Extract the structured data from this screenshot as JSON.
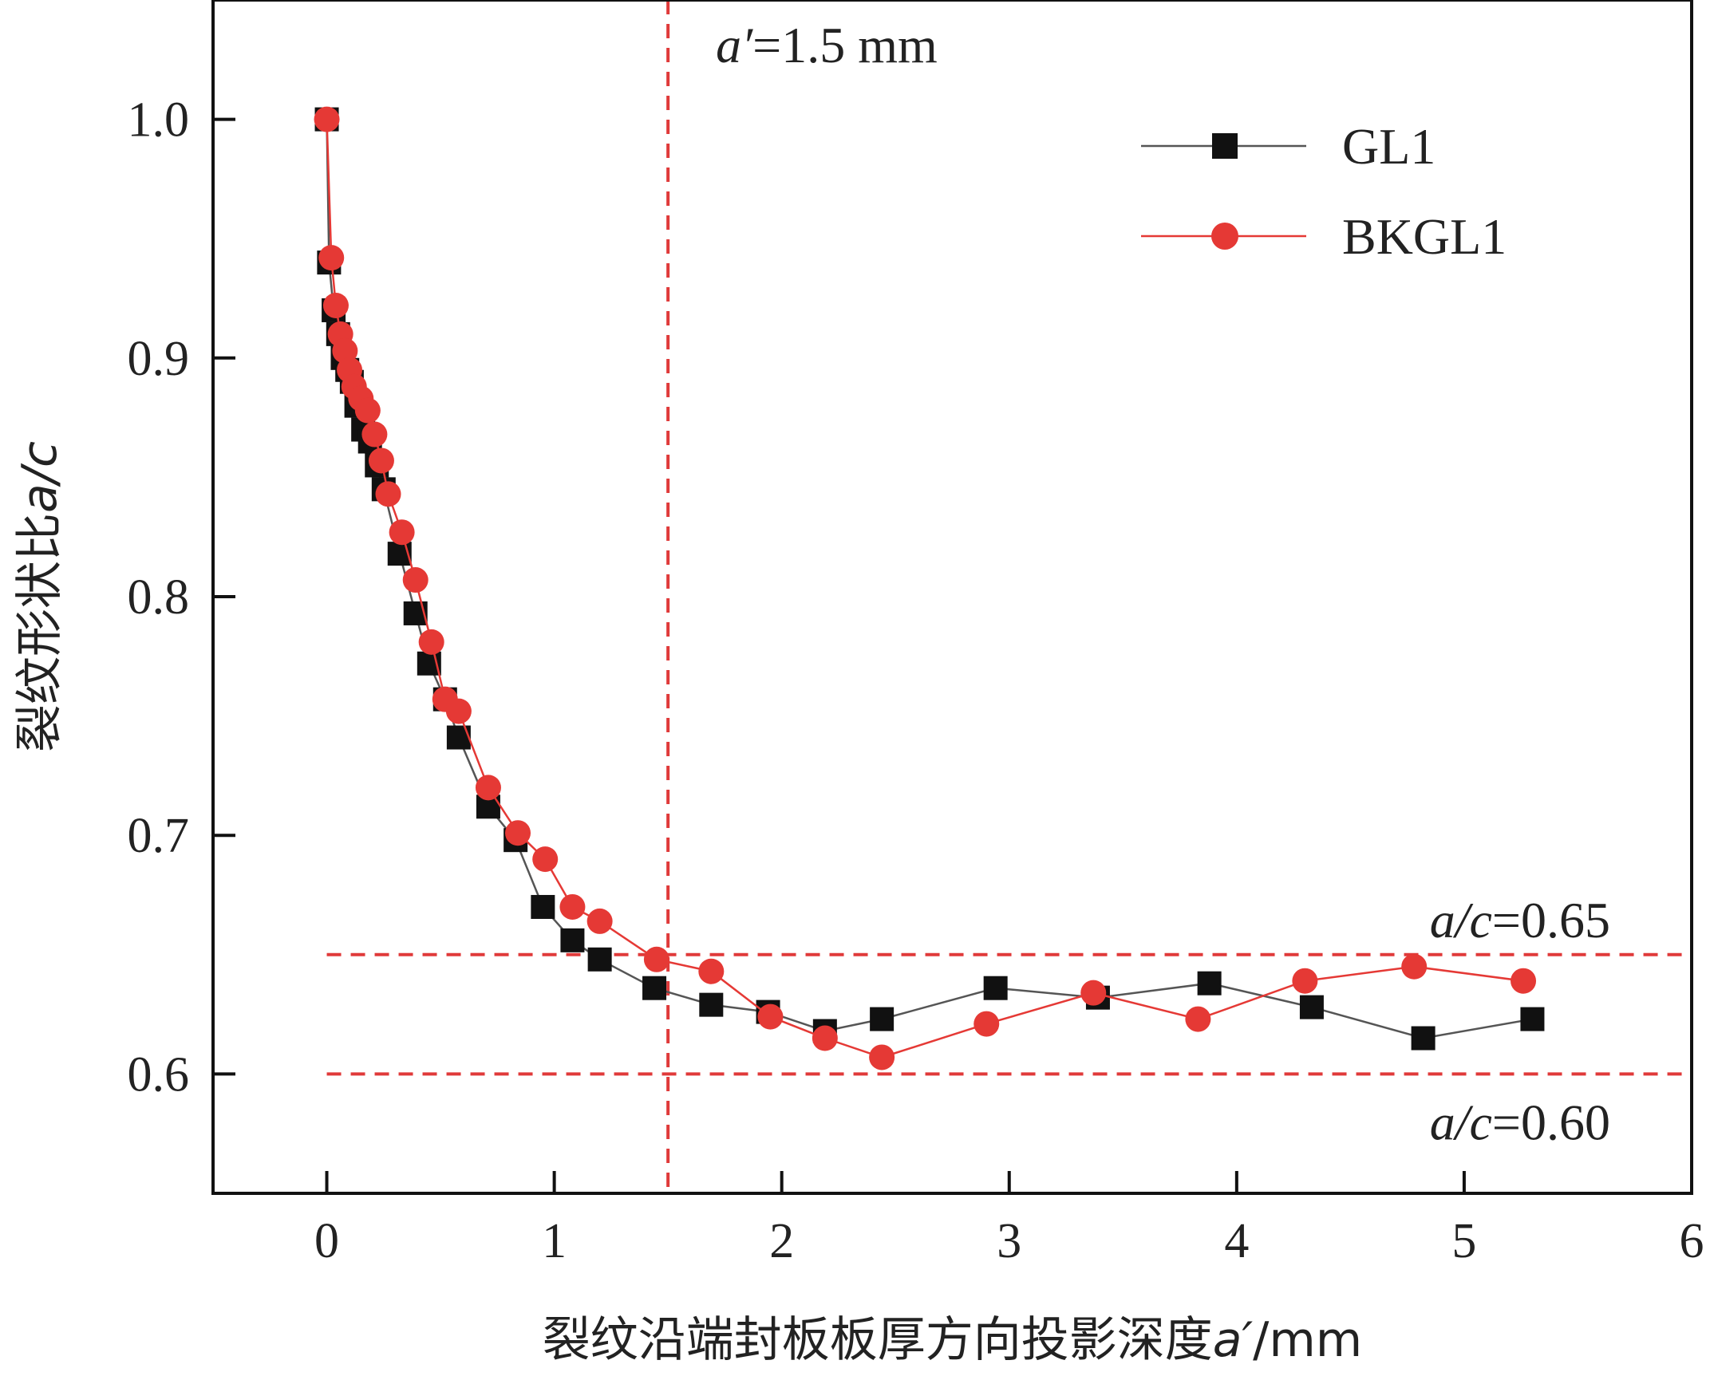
{
  "chart_data": {
    "type": "scatter",
    "xlabel": "裂纹沿端封板板厚方向投影深度",
    "xlabel_var": "a′",
    "xlabel_unit": "/mm",
    "ylabel": "裂纹形状比",
    "ylabel_var": "a/c",
    "xlim": [
      -0.5,
      6
    ],
    "ylim": [
      0.55,
      1.05
    ],
    "xticks": [
      0,
      1,
      2,
      3,
      4,
      5,
      6
    ],
    "yticks": [
      0.6,
      0.7,
      0.8,
      0.9,
      1.0
    ],
    "xtick_labels": [
      "0",
      "1",
      "2",
      "3",
      "4",
      "5",
      "6"
    ],
    "ytick_labels": [
      "0.6",
      "0.7",
      "0.8",
      "0.9",
      "1.0"
    ],
    "legend_position": "top-right",
    "reference_lines": [
      {
        "orientation": "vertical",
        "value": 1.5,
        "label_var": "a′",
        "label_rest": "=1.5 mm",
        "color": "#e03a3a"
      },
      {
        "orientation": "horizontal",
        "value": 0.65,
        "label_var": "a/c",
        "label_rest": "=0.65",
        "color": "#e03a3a"
      },
      {
        "orientation": "horizontal",
        "value": 0.6,
        "label_var": "a/c",
        "label_rest": "=0.60",
        "color": "#e03a3a"
      }
    ],
    "series": [
      {
        "name": "GL1",
        "marker": "square",
        "marker_color": "#111111",
        "line_color": "#555555",
        "x": [
          0.0,
          0.01,
          0.03,
          0.05,
          0.07,
          0.09,
          0.11,
          0.13,
          0.16,
          0.19,
          0.22,
          0.25,
          0.32,
          0.39,
          0.45,
          0.52,
          0.58,
          0.71,
          0.83,
          0.95,
          1.08,
          1.2,
          1.44,
          1.69,
          1.94,
          2.19,
          2.44,
          2.94,
          3.39,
          3.88,
          4.33,
          4.82,
          5.3
        ],
        "y": [
          1.0,
          0.94,
          0.92,
          0.91,
          0.9,
          0.895,
          0.89,
          0.88,
          0.87,
          0.865,
          0.855,
          0.845,
          0.818,
          0.793,
          0.772,
          0.757,
          0.741,
          0.712,
          0.698,
          0.67,
          0.656,
          0.648,
          0.636,
          0.629,
          0.626,
          0.618,
          0.623,
          0.636,
          0.632,
          0.638,
          0.628,
          0.615,
          0.623
        ]
      },
      {
        "name": "BKGL1",
        "marker": "circle",
        "marker_color": "#e53935",
        "line_color": "#e53935",
        "x": [
          0.0,
          0.02,
          0.04,
          0.06,
          0.08,
          0.1,
          0.12,
          0.15,
          0.18,
          0.21,
          0.24,
          0.27,
          0.33,
          0.39,
          0.46,
          0.52,
          0.58,
          0.71,
          0.84,
          0.96,
          1.08,
          1.2,
          1.45,
          1.69,
          1.95,
          2.19,
          2.44,
          2.9,
          3.37,
          3.83,
          4.3,
          4.78,
          5.26
        ],
        "y": [
          1.0,
          0.942,
          0.922,
          0.91,
          0.903,
          0.895,
          0.888,
          0.883,
          0.878,
          0.868,
          0.857,
          0.843,
          0.827,
          0.807,
          0.781,
          0.757,
          0.752,
          0.72,
          0.701,
          0.69,
          0.67,
          0.664,
          0.648,
          0.643,
          0.624,
          0.615,
          0.607,
          0.621,
          0.634,
          0.623,
          0.639,
          0.645,
          0.639
        ]
      }
    ]
  }
}
